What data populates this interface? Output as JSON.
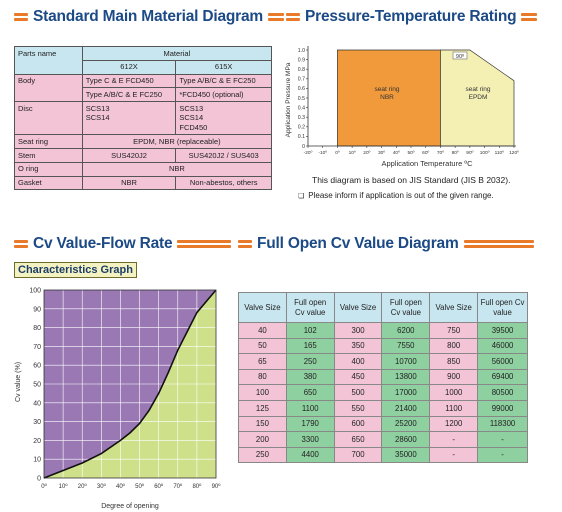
{
  "sections": {
    "material_title": "Standard Main Material Diagram",
    "pt_title": "Pressure-Temperature Rating",
    "cv_flow_title": "Cv Value-Flow Rate",
    "cv_full_title": "Full Open Cv Value Diagram",
    "char_graph_label": "Characteristics Graph"
  },
  "material_table": {
    "parts_header": "Parts name",
    "material_header": "Material",
    "col_612x": "612X",
    "col_615x": "615X",
    "body_label": "Body",
    "body_612_a": "Type C & E FCD450",
    "body_612_b": "Type A/B/C & E FC250",
    "body_615_a": "Type A/B/C & E FC250",
    "body_615_b": "*FCD450 (optional)",
    "disc_label": "Disc",
    "disc_612_a": "SCS13",
    "disc_612_b": "SCS14",
    "disc_615_a": "SCS13",
    "disc_615_b": "SCS14",
    "disc_615_c": "FCD450",
    "seat_label": "Seat ring",
    "seat_value": "EPDM, NBR (replaceable)",
    "stem_label": "Stem",
    "stem_612": "SUS420J2",
    "stem_615": "SUS420J2 / SUS403",
    "oring_label": "O ring",
    "oring_value": "NBR",
    "gasket_label": "Gasket",
    "gasket_612": "NBR",
    "gasket_615": "Non-abestos, others"
  },
  "pt_chart": {
    "ylabel": "Application Pressure MPa",
    "xlabel": "Application Temperature ºC",
    "y_ticks": [
      "0",
      "0.1",
      "0.2",
      "0.3",
      "0.4",
      "0.5",
      "0.6",
      "0.7",
      "0.8",
      "0.9",
      "1.0"
    ],
    "x_ticks": [
      "-20º",
      "-10º",
      "0º",
      "10º",
      "20º",
      "30º",
      "40º",
      "50º",
      "60º",
      "70º",
      "80º",
      "90º",
      "100º",
      "110º",
      "120º"
    ],
    "nbr_label_1": "seat ring",
    "nbr_label_2": "NBR",
    "epdm_label_1": "seat ring",
    "epdm_label_2": "EPDM",
    "corner_label": "90º",
    "colors": {
      "nbr": "#f09a3c",
      "epdm": "#f4f0b4"
    }
  },
  "notes": {
    "jis": "This diagram is based on JIS Standard (JIS B 2032).",
    "inform": "Please inform if application is out of the given range.",
    "bullet": "❏"
  },
  "chart_data": [
    {
      "type": "area",
      "title": "",
      "xlabel": "Application Temperature ºC",
      "ylabel": "Application Pressure MPa",
      "xlim": [
        -20,
        120
      ],
      "ylim": [
        0,
        1.0
      ],
      "series": [
        {
          "name": "seat ring NBR",
          "x": [
            0,
            0,
            70,
            70
          ],
          "y": [
            0,
            1.0,
            1.0,
            0
          ]
        },
        {
          "name": "seat ring EPDM",
          "x": [
            70,
            70,
            90,
            120,
            120
          ],
          "y": [
            0,
            1.0,
            1.0,
            0.68,
            0
          ]
        }
      ]
    },
    {
      "type": "area",
      "title": "Characteristics Graph",
      "xlabel": "Degree of opening",
      "ylabel": "Cv value (%)",
      "xlim": [
        0,
        90
      ],
      "ylim": [
        0,
        100
      ],
      "x_ticks": [
        "0º",
        "10º",
        "20º",
        "30º",
        "40º",
        "50º",
        "60º",
        "70º",
        "80º",
        "90º"
      ],
      "y_ticks": [
        "0",
        "10",
        "20",
        "30",
        "40",
        "50",
        "60",
        "70",
        "80",
        "90",
        "100"
      ],
      "x": [
        0,
        5,
        10,
        20,
        30,
        40,
        45,
        50,
        55,
        60,
        65,
        70,
        75,
        80,
        85,
        90
      ],
      "y": [
        0,
        2,
        4,
        8,
        13,
        20,
        24,
        29,
        36,
        45,
        56,
        68,
        78,
        88,
        94,
        100
      ],
      "colors": {
        "above": "#9a78b4",
        "below": "#cfe08a"
      }
    }
  ],
  "cv_table": {
    "headers": [
      "Valve Size",
      "Full open Cv value",
      "Valve Size",
      "Full open Cv value",
      "Valve Size",
      "Full open Cv value"
    ],
    "rows": [
      [
        "40",
        "102",
        "300",
        "6200",
        "750",
        "39500"
      ],
      [
        "50",
        "165",
        "350",
        "7550",
        "800",
        "46000"
      ],
      [
        "65",
        "250",
        "400",
        "10700",
        "850",
        "56000"
      ],
      [
        "80",
        "380",
        "450",
        "13800",
        "900",
        "69400"
      ],
      [
        "100",
        "650",
        "500",
        "17000",
        "1000",
        "80500"
      ],
      [
        "125",
        "1100",
        "550",
        "21400",
        "1100",
        "99000"
      ],
      [
        "150",
        "1790",
        "600",
        "25200",
        "1200",
        "118300"
      ],
      [
        "200",
        "3300",
        "650",
        "28600",
        "-",
        "-"
      ],
      [
        "250",
        "4400",
        "700",
        "35000",
        "-",
        "-"
      ]
    ]
  }
}
